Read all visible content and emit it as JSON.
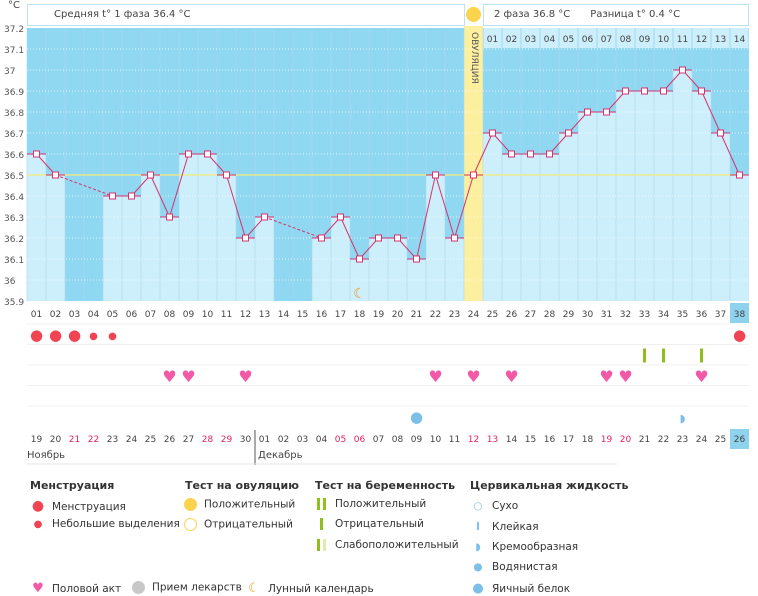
{
  "header": {
    "unit": "°C",
    "phase1": "Средняя t° 1 фаза 36.4 °C",
    "phase2": "2 фаза 36.8 °C",
    "diff": "Разница t° 0.4 °C",
    "ovulation_label": "ОВУЛЯЦИЯ"
  },
  "colors": {
    "above": "#90d7f1",
    "bar": "#cdeefb",
    "line": "#d6336c",
    "coverline": "#f5ec7a",
    "ovulation": "#fcef9e",
    "highlight": "#8fd2ee",
    "weekend": "#e0245e"
  },
  "chart_data": {
    "type": "line",
    "title": "",
    "ylabel": "°C",
    "ylim": [
      35.9,
      37.2
    ],
    "yticks": [
      "37.2",
      "37.1",
      "37",
      "36.9",
      "36.8",
      "36.7",
      "36.6",
      "36.5",
      "36.4",
      "36.3",
      "36.2",
      "36.1",
      "36",
      "35.9"
    ],
    "cycle_days": [
      "01",
      "02",
      "03",
      "04",
      "05",
      "06",
      "07",
      "08",
      "09",
      "10",
      "11",
      "12",
      "13",
      "14",
      "15",
      "16",
      "17",
      "18",
      "19",
      "20",
      "21",
      "22",
      "23",
      "24",
      "25",
      "26",
      "27",
      "28",
      "29",
      "30",
      "31",
      "32",
      "33",
      "34",
      "35",
      "36",
      "37",
      "38"
    ],
    "temperatures": [
      36.6,
      36.5,
      null,
      null,
      36.4,
      36.4,
      36.5,
      36.3,
      36.6,
      36.6,
      36.5,
      36.2,
      36.3,
      null,
      null,
      36.2,
      36.3,
      36.1,
      36.2,
      36.2,
      36.1,
      36.5,
      36.2,
      36.5,
      36.7,
      36.6,
      36.6,
      36.6,
      36.7,
      36.8,
      36.8,
      36.9,
      36.9,
      36.9,
      37.0,
      36.9,
      36.7,
      36.5
    ],
    "coverline": 36.5,
    "ovulation_day": 24,
    "phase2_days": [
      "01",
      "02",
      "03",
      "04",
      "05",
      "06",
      "07",
      "08",
      "09",
      "10",
      "11",
      "12",
      "13",
      "14"
    ],
    "dates": [
      "19",
      "20",
      "21",
      "22",
      "23",
      "24",
      "25",
      "26",
      "27",
      "28",
      "29",
      "30",
      "01",
      "02",
      "03",
      "04",
      "05",
      "06",
      "07",
      "08",
      "09",
      "10",
      "11",
      "12",
      "13",
      "14",
      "15",
      "16",
      "17",
      "18",
      "19",
      "20",
      "21",
      "22",
      "23",
      "24",
      "25",
      "26"
    ],
    "weekend_days": [
      3,
      4,
      10,
      11,
      17,
      18,
      24,
      25,
      31,
      32
    ],
    "months": [
      "Ноябрь",
      "Декабрь"
    ],
    "menstruation": {
      "1": "heavy",
      "2": "heavy",
      "3": "heavy",
      "4": "light",
      "5": "light",
      "38": "heavy"
    },
    "pregnancy_tests": {
      "33": "negative",
      "34": "negative",
      "36": "negative"
    },
    "intercourse": [
      8,
      9,
      12,
      22,
      24,
      26,
      31,
      32,
      36
    ],
    "cervical_fluid": {
      "21": "egg-white",
      "35": "creamy"
    },
    "moon": [
      18
    ]
  },
  "legend": {
    "menstruation": {
      "title": "Менструация",
      "items": [
        "Менструация",
        "Небольшие выделения"
      ]
    },
    "ovulation_test": {
      "title": "Тест на овуляцию",
      "items": [
        "Положительный",
        "Отрицательный"
      ]
    },
    "pregnancy_test": {
      "title": "Тест на беременность",
      "items": [
        "Положительный",
        "Отрицательный",
        "Слабоположительный"
      ]
    },
    "cervical": {
      "title": "Цервикальная жидкость",
      "items": [
        "Сухо",
        "Клейкая",
        "Кремообразная",
        "Водянистая",
        "Яичный белок"
      ]
    },
    "other": [
      "Половой акт",
      "Прием лекарств",
      "Лунный календарь"
    ]
  }
}
